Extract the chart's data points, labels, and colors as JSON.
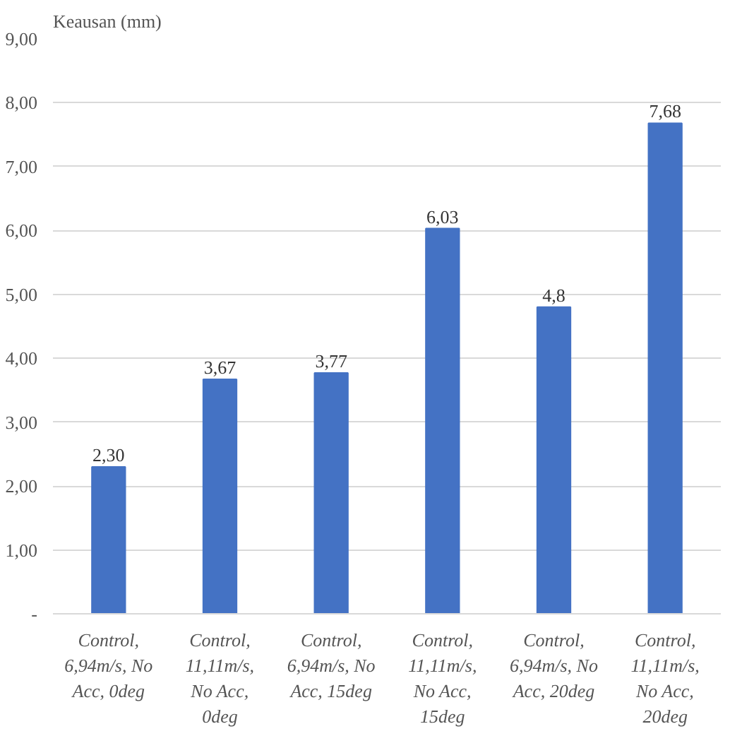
{
  "chart_data": {
    "type": "bar",
    "ylabel": "Keausan (mm)",
    "categories": [
      "Control, 6,94m/s, No Acc, 0deg",
      "Control, 11,11m/s, No Acc, 0deg",
      "Control, 6,94m/s, No Acc, 15deg",
      "Control, 11,11m/s, No Acc, 15deg",
      "Control, 6,94m/s, No Acc, 20deg",
      "Control, 11,11m/s, No Acc, 20deg"
    ],
    "values": [
      2.3,
      3.67,
      3.77,
      6.03,
      4.8,
      7.68
    ],
    "value_labels": [
      "2,30",
      "3,67",
      "3,77",
      "6,03",
      "4,8",
      "7,68"
    ],
    "color": "#4472c4",
    "ylim": [
      0,
      9
    ],
    "yticks": [
      {
        "value": 0,
        "label": "-"
      },
      {
        "value": 1,
        "label": "1,00"
      },
      {
        "value": 2,
        "label": "2,00"
      },
      {
        "value": 3,
        "label": "3,00"
      },
      {
        "value": 4,
        "label": "4,00"
      },
      {
        "value": 5,
        "label": "5,00"
      },
      {
        "value": 6,
        "label": "6,00"
      },
      {
        "value": 7,
        "label": "7,00"
      },
      {
        "value": 8,
        "label": "8,00"
      },
      {
        "value": 9,
        "label": "9,00"
      }
    ],
    "grid": "y"
  }
}
